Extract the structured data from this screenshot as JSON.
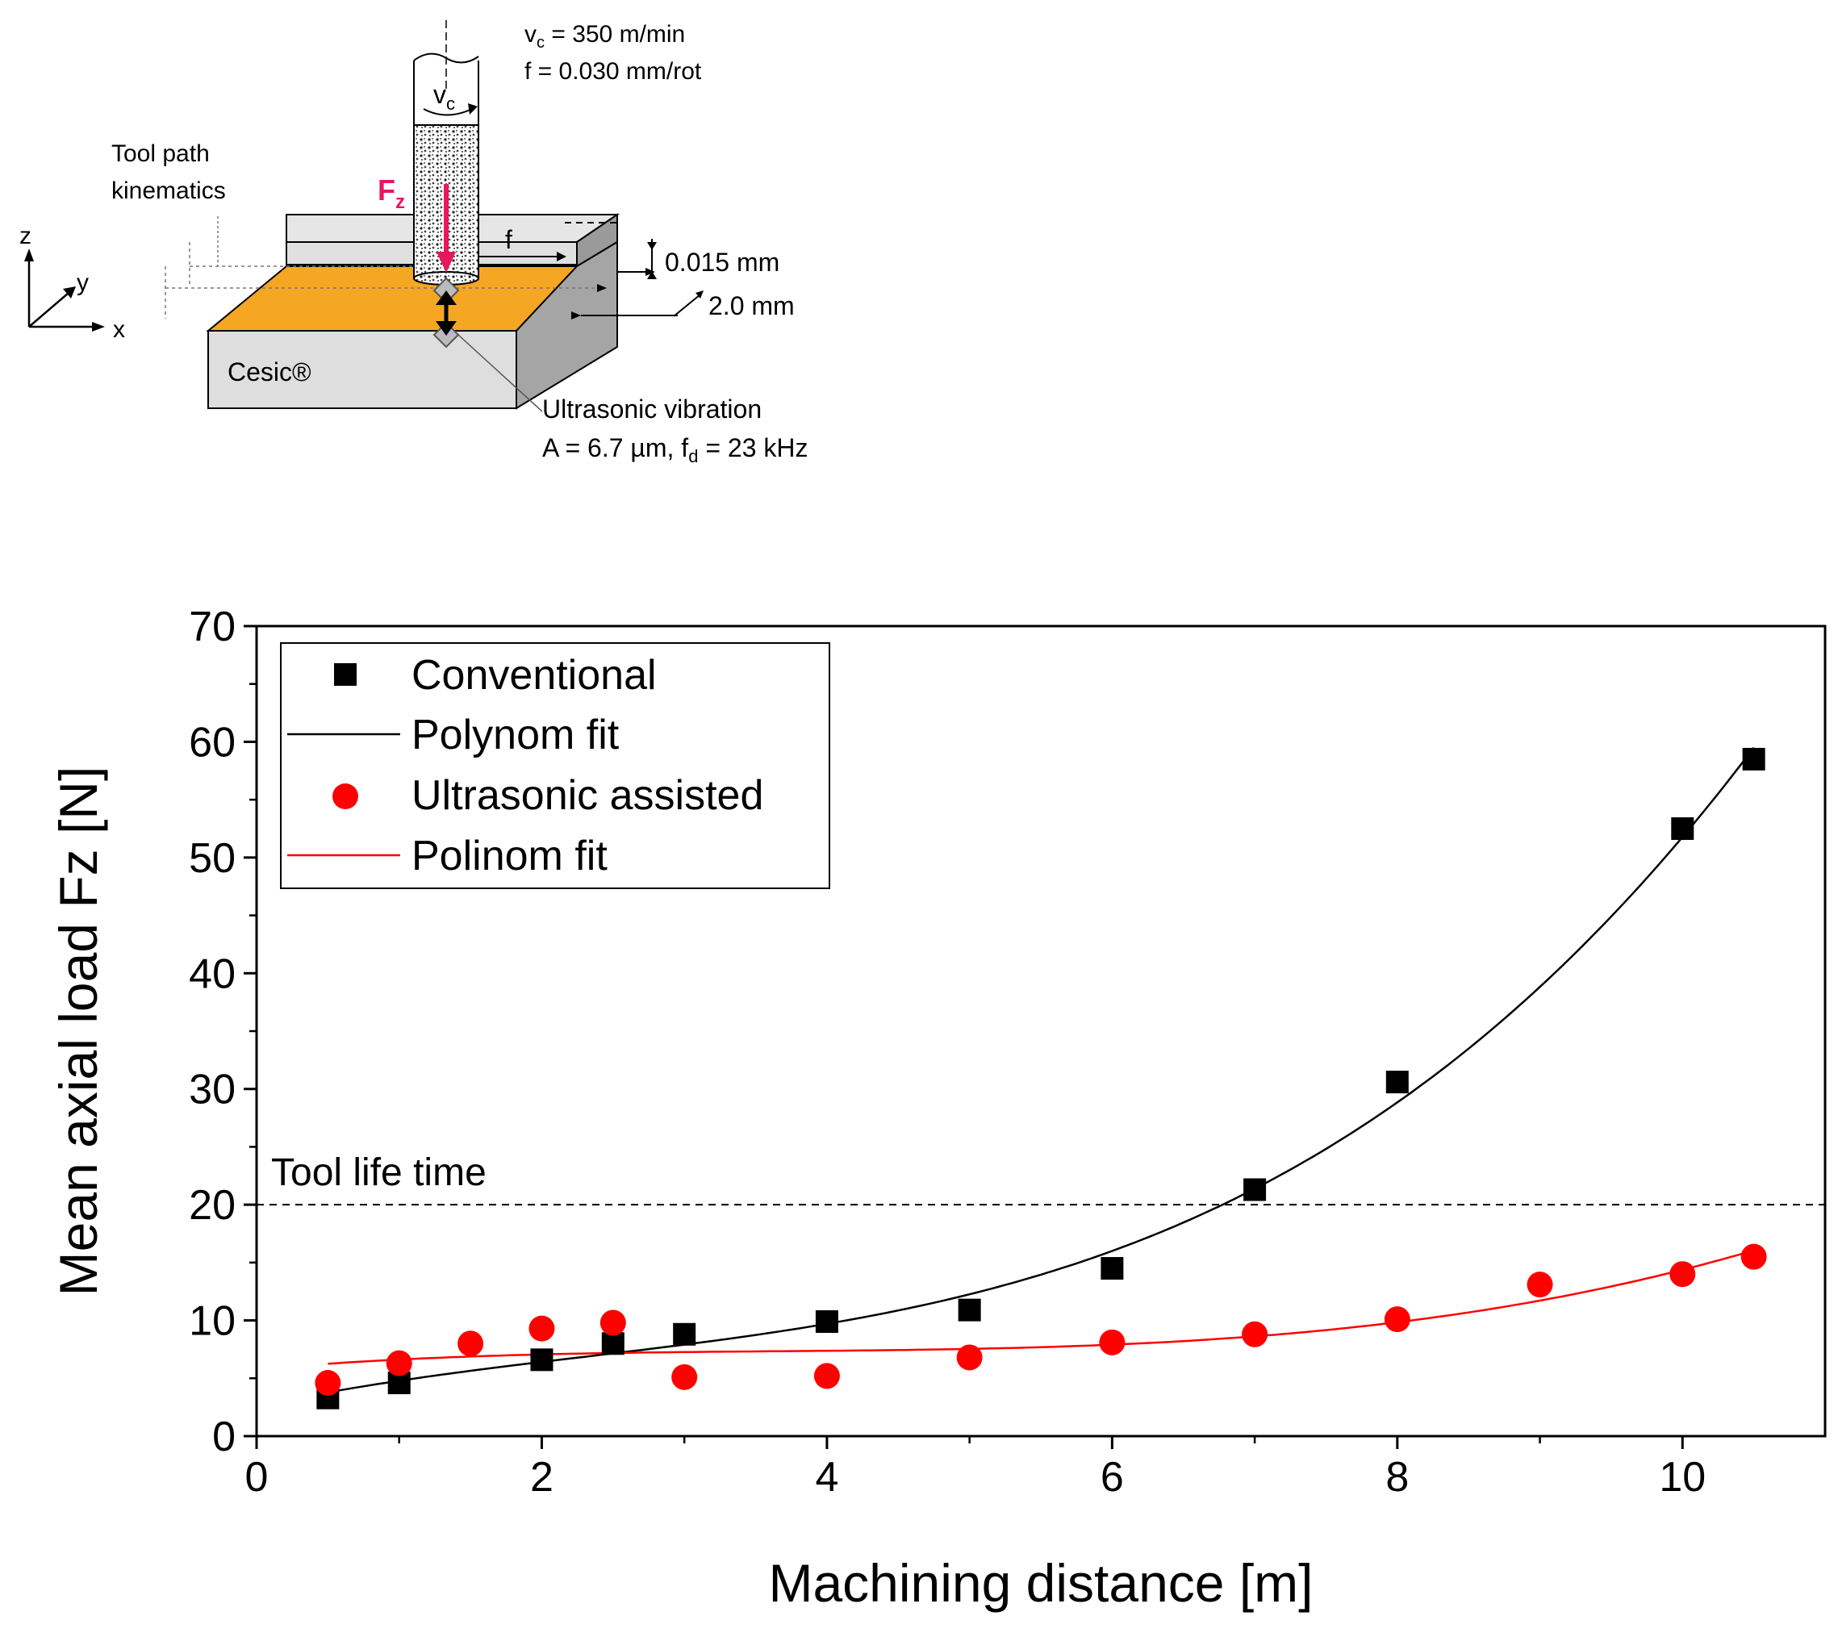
{
  "diagram": {
    "params_vc": "v",
    "params_vc_sub": "c",
    "params_vc_value": " = 350 m/min",
    "params_f": "f = 0.030 mm/rot",
    "tool_label_v": "v",
    "tool_label_v_sub": "c",
    "tool_path_line1": "Tool path",
    "tool_path_line2": "kinematics",
    "force_label": "F",
    "force_label_sub": "z",
    "feed_label": "f",
    "depth_label": "0.015 mm",
    "width_label": "2.0 mm",
    "material_label": "Cesic®",
    "ultrasonic_line1": "Ultrasonic vibration",
    "ultrasonic_amp": "A = 6.7 µm, f",
    "ultrasonic_freq_sub": "d",
    "ultrasonic_freq": " = 23 kHz",
    "axis_z": "z",
    "axis_y": "y",
    "axis_x": "x",
    "colors": {
      "workpiece_top": "#f5a623",
      "force": "#e8175d"
    }
  },
  "chart_data": {
    "type": "scatter",
    "title": "",
    "xlabel": "Machining distance [m]",
    "ylabel": "Mean axial load Fz [N]",
    "xlim": [
      0,
      11
    ],
    "ylim": [
      0,
      70
    ],
    "xticks": [
      0,
      2,
      4,
      6,
      8,
      10
    ],
    "yticks": [
      0,
      10,
      20,
      30,
      40,
      50,
      60,
      70
    ],
    "legend_position": "top-left",
    "threshold": {
      "y": 20,
      "label": "Tool life time",
      "style": "dashed"
    },
    "series": [
      {
        "name": "Conventional",
        "marker": "square",
        "color": "#000000",
        "x": [
          0.5,
          1,
          2,
          2.5,
          3,
          4,
          5,
          6,
          7,
          8,
          10,
          10.5
        ],
        "y": [
          3.3,
          4.6,
          6.6,
          8.0,
          8.8,
          9.9,
          10.9,
          14.5,
          21.3,
          30.6,
          52.5,
          58.5
        ]
      },
      {
        "name": "Polynom fit",
        "line": true,
        "color": "#000000",
        "fit_of": "Conventional"
      },
      {
        "name": "Ultrasonic assisted",
        "marker": "circle",
        "color": "#ff0000",
        "x": [
          0.5,
          1,
          1.5,
          2,
          2.5,
          3,
          4,
          5,
          6,
          7,
          8,
          9,
          10,
          10.5
        ],
        "y": [
          4.6,
          6.3,
          8.0,
          9.3,
          9.8,
          5.1,
          5.2,
          6.8,
          8.1,
          8.8,
          10.1,
          13.1,
          14.0,
          15.5
        ]
      },
      {
        "name": "Polinom fit",
        "line": true,
        "color": "#ff0000",
        "fit_of": "Ultrasonic assisted"
      }
    ]
  }
}
